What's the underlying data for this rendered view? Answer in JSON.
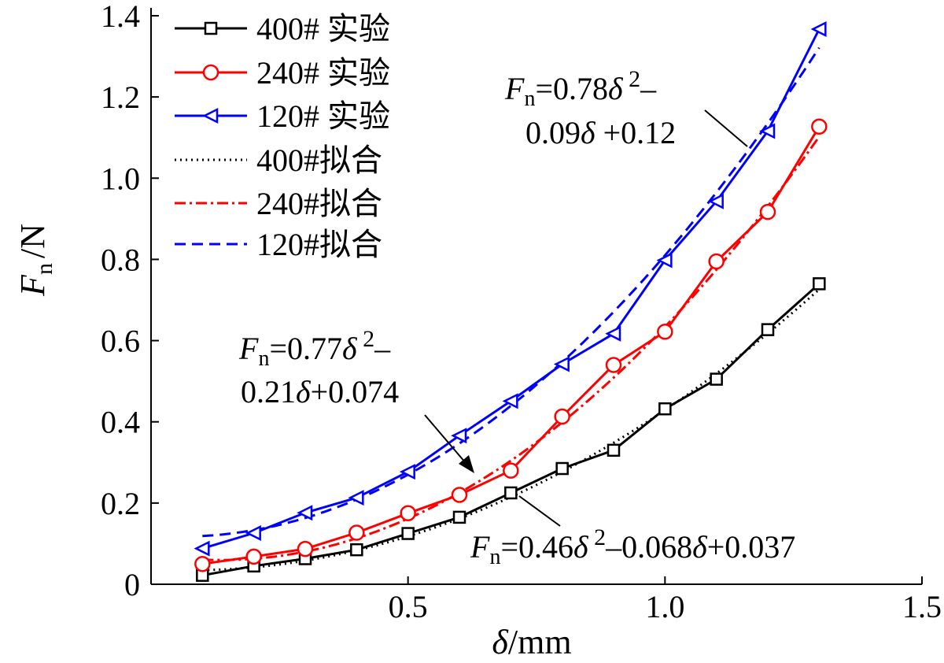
{
  "chart_data": {
    "type": "line",
    "x": [
      0.1,
      0.2,
      0.3,
      0.4,
      0.5,
      0.6,
      0.7,
      0.8,
      0.9,
      1.0,
      1.1,
      1.2,
      1.3
    ],
    "xlim": [
      0,
      1.5
    ],
    "ylim": [
      0,
      1.4
    ],
    "x_ticks": [
      "0.5",
      "1.0",
      "1.5"
    ],
    "x_tick_values": [
      0.5,
      1.0,
      1.5
    ],
    "y_ticks": [
      "0",
      "0.2",
      "0.4",
      "0.6",
      "0.8",
      "1.0",
      "1.2",
      "1.4"
    ],
    "y_tick_values": [
      0,
      0.2,
      0.4,
      0.6,
      0.8,
      1.0,
      1.2,
      1.4
    ],
    "xlabel": {
      "symbol": "δ",
      "unit": "/mm"
    },
    "ylabel": {
      "symbol": "F",
      "sub": "n",
      "unit": "/N"
    },
    "legend_position": "top-left",
    "series": [
      {
        "name": "400# 实验",
        "kind": "experiment",
        "marker": "square",
        "color": "#000000",
        "values": [
          0.022,
          0.045,
          0.063,
          0.085,
          0.125,
          0.165,
          0.225,
          0.285,
          0.33,
          0.432,
          0.505,
          0.627,
          0.74
        ]
      },
      {
        "name": "240# 实验",
        "kind": "experiment",
        "marker": "circle",
        "color": "#ff0000",
        "values": [
          0.05,
          0.068,
          0.087,
          0.127,
          0.175,
          0.22,
          0.28,
          0.413,
          0.54,
          0.622,
          0.795,
          0.917,
          1.127
        ]
      },
      {
        "name": "120# 实验",
        "kind": "experiment",
        "marker": "triangle-left",
        "color": "#0000ff",
        "values": [
          0.088,
          0.126,
          0.176,
          0.213,
          0.277,
          0.366,
          0.451,
          0.542,
          0.617,
          0.798,
          0.943,
          1.116,
          1.367
        ]
      },
      {
        "name": "400#拟合",
        "kind": "fit",
        "dash": "dotted",
        "color": "#000000",
        "coefficients": [
          0.46,
          -0.068,
          0.037
        ]
      },
      {
        "name": "240#拟合",
        "kind": "fit",
        "dash": "dashdot",
        "color": "#ff0000",
        "coefficients": [
          0.77,
          -0.21,
          0.074
        ]
      },
      {
        "name": "120#拟合",
        "kind": "fit",
        "dash": "dashed",
        "color": "#0000ff",
        "coefficients": [
          0.78,
          -0.09,
          0.12
        ]
      }
    ],
    "annotations": [
      {
        "line1": [
          "=0.78",
          " 2",
          "–"
        ],
        "line2": [
          "0.09",
          " +0.12"
        ]
      },
      {
        "line1": [
          "=0.77",
          " 2",
          "–"
        ],
        "line2": [
          "0.21",
          "+0.074"
        ]
      },
      {
        "line1": [
          "=0.46",
          " 2",
          "–0.068",
          "+0.037"
        ]
      }
    ]
  }
}
